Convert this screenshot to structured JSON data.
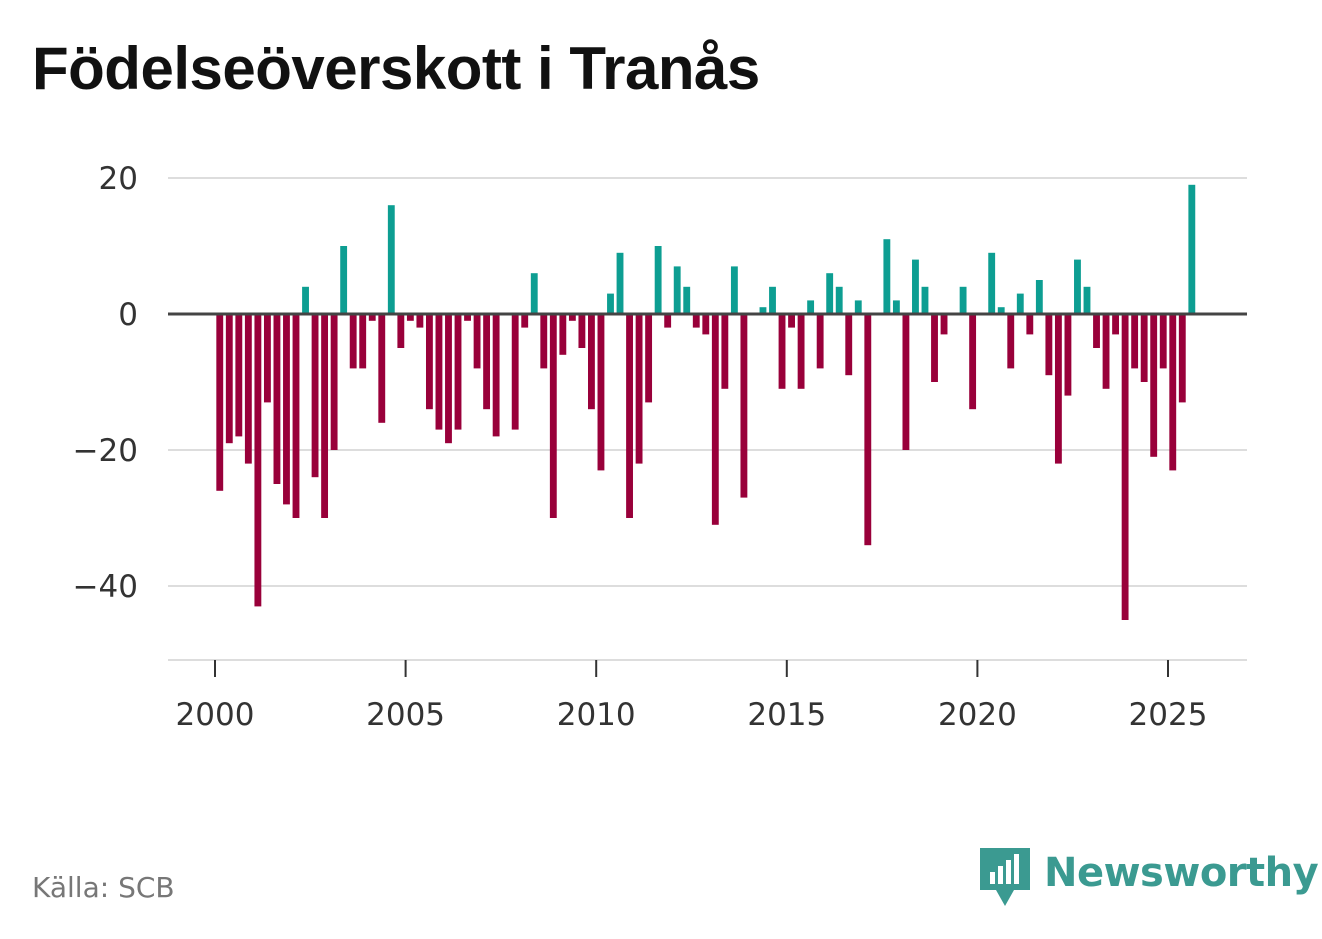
{
  "chart_data": {
    "type": "bar",
    "title": "Födelseöverskott i Tranås",
    "xlabel": "",
    "ylabel": "",
    "ylim": [
      -50,
      20
    ],
    "y_ticks": [
      20,
      0,
      -20,
      -40
    ],
    "y_tick_labels": [
      "20",
      "0",
      "−20",
      "−40"
    ],
    "x_range": [
      1999.5,
      2027.5
    ],
    "x_ticks": [
      2000,
      2005,
      2010,
      2015,
      2020,
      2025
    ],
    "x_tick_labels": [
      "2000",
      "2005",
      "2010",
      "2015",
      "2020",
      "2025"
    ],
    "grid": true,
    "positive_color": "#0d9e92",
    "negative_color": "#99003a",
    "start": {
      "year": 2000,
      "quarter": 1
    },
    "series": [
      {
        "name": "Födelseöverskott",
        "values": [
          -26,
          -19,
          -18,
          -22,
          -43,
          -13,
          -25,
          -28,
          -30,
          4,
          -24,
          -30,
          -20,
          10,
          -8,
          -8,
          -1,
          -16,
          16,
          -5,
          -1,
          -2,
          -14,
          -17,
          -19,
          -17,
          -1,
          -8,
          -14,
          -18,
          0,
          -17,
          -2,
          6,
          -8,
          -30,
          -6,
          -1,
          -5,
          -14,
          -23,
          3,
          9,
          -30,
          -22,
          -13,
          10,
          -2,
          7,
          4,
          -2,
          -3,
          -31,
          -11,
          7,
          -27,
          0,
          1,
          4,
          -11,
          -2,
          -11,
          2,
          -8,
          6,
          4,
          -9,
          2,
          -34,
          0,
          11,
          2,
          -20,
          8,
          4,
          -10,
          -3,
          0,
          4,
          -14,
          0,
          9,
          1,
          -8,
          3,
          -3,
          5,
          -9,
          -22,
          -12,
          8,
          4,
          -5,
          -11,
          -3,
          -45,
          -8,
          -10,
          -21,
          -8,
          -23,
          -13,
          19
        ]
      }
    ]
  },
  "footer": {
    "source": "Källa: SCB",
    "brand": "Newsworthy",
    "brand_color": "#3b9a91"
  }
}
